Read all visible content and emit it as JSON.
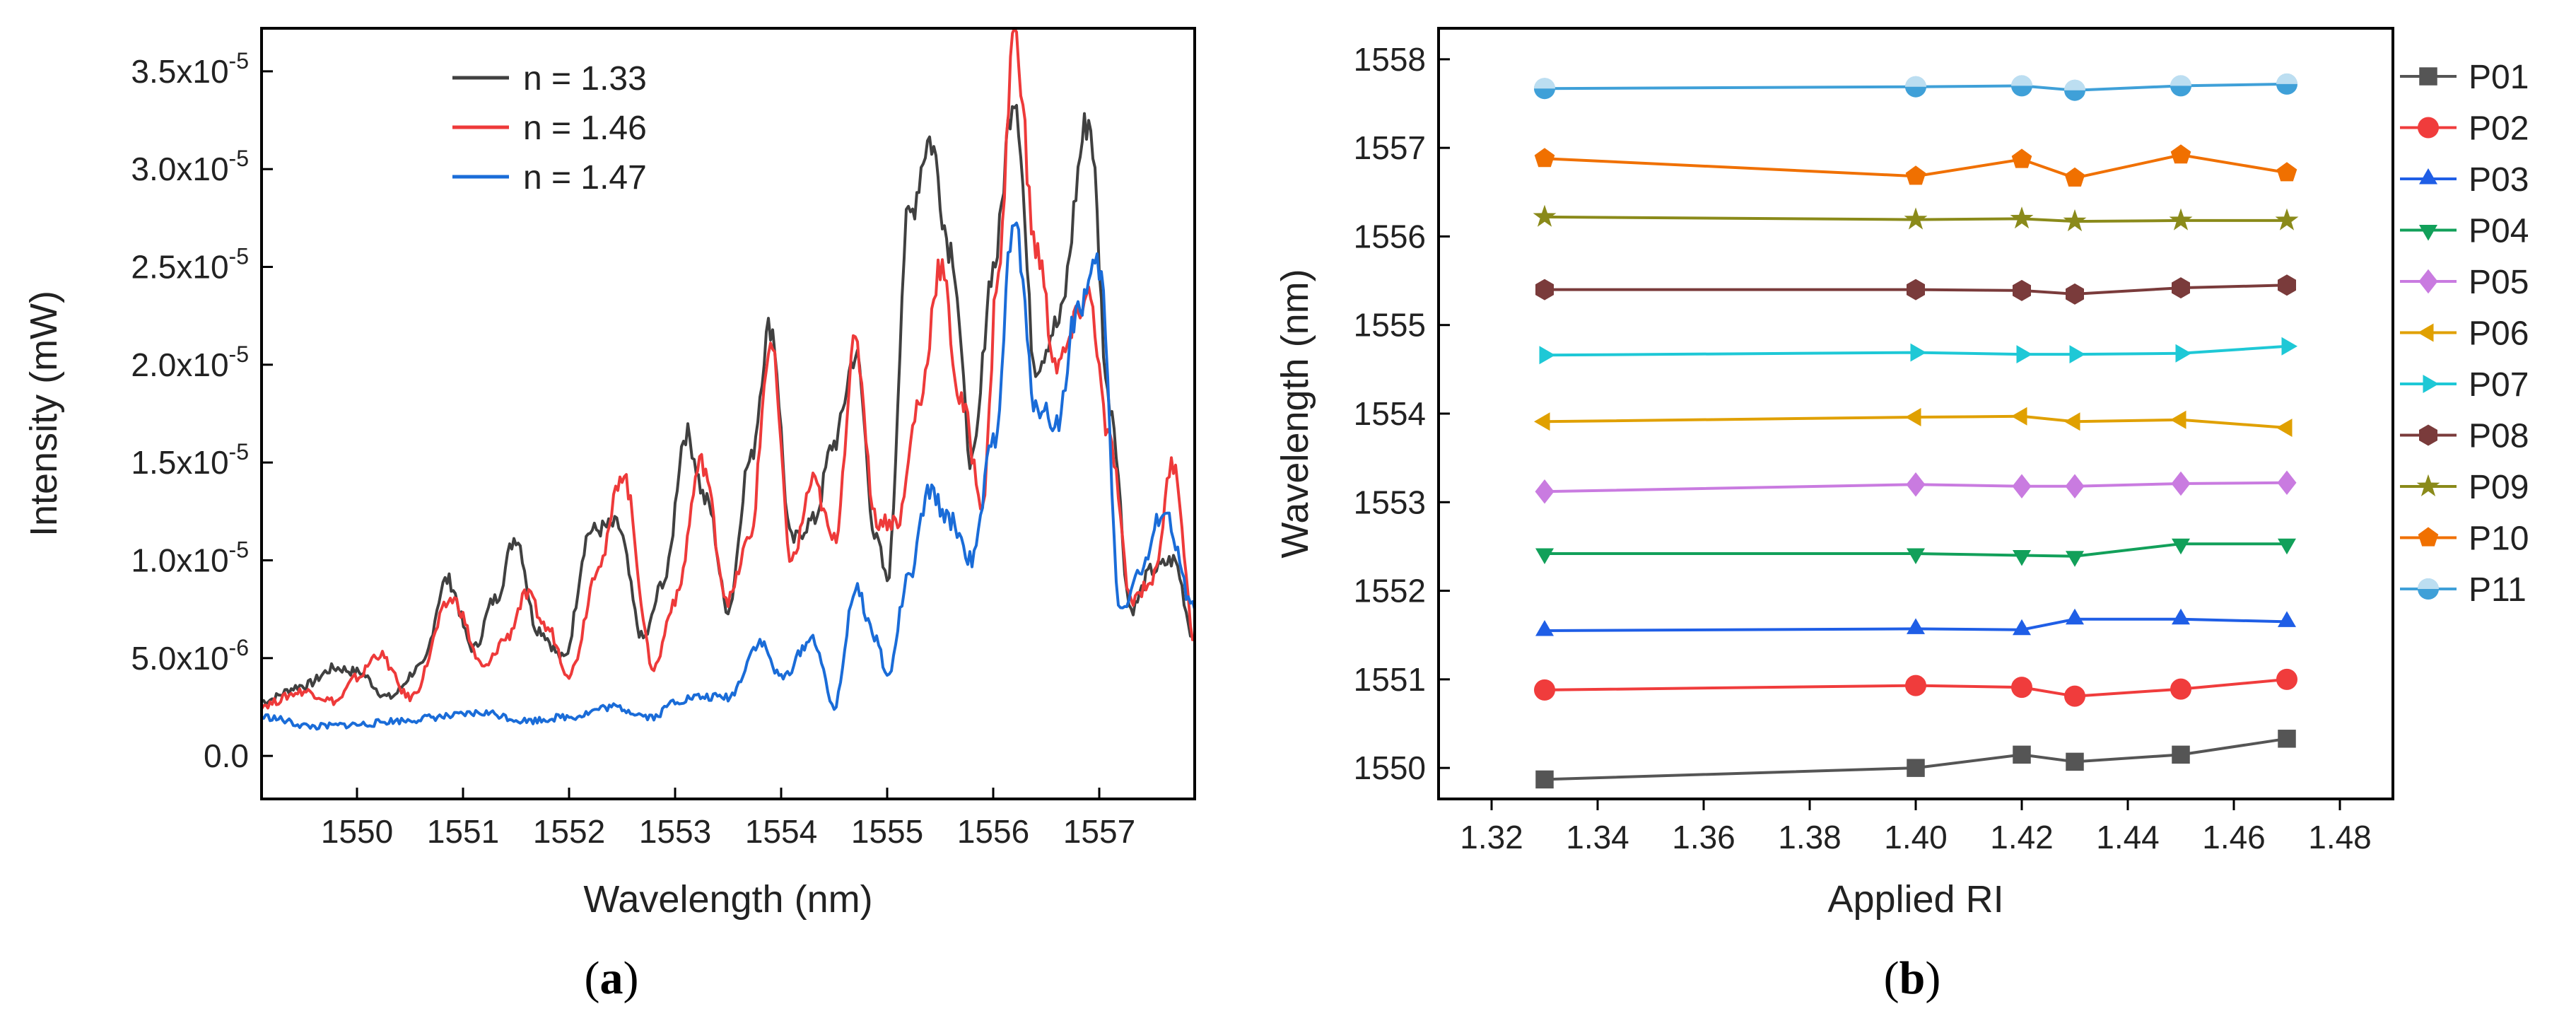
{
  "chart_data": [
    {
      "type": "line",
      "panel_label": "a",
      "xlabel": "Wavelength (nm)",
      "ylabel": "Intensity (mW)",
      "xlim": [
        1549.1,
        1557.9
      ],
      "ylim": [
        -2.2e-06,
        3.72e-05
      ],
      "xticks": [
        1550,
        1551,
        1552,
        1553,
        1554,
        1555,
        1556,
        1557
      ],
      "yticks": [
        {
          "value": 0,
          "mant": "0.0",
          "exp": ""
        },
        {
          "value": 5e-06,
          "mant": "5.0x10",
          "exp": "-6"
        },
        {
          "value": 1e-05,
          "mant": "1.0x10",
          "exp": "-5"
        },
        {
          "value": 1.5e-05,
          "mant": "1.5x10",
          "exp": "-5"
        },
        {
          "value": 2e-05,
          "mant": "2.0x10",
          "exp": "-5"
        },
        {
          "value": 2.5e-05,
          "mant": "2.5x10",
          "exp": "-5"
        },
        {
          "value": 3e-05,
          "mant": "3.0x10",
          "exp": "-5"
        },
        {
          "value": 3.5e-05,
          "mant": "3.5x10",
          "exp": "-5"
        }
      ],
      "legend_position": "top-left",
      "series": [
        {
          "name": "n = 1.33",
          "color": "#404040",
          "x": [
            1549.1,
            1549.5,
            1549.8,
            1550.0,
            1550.3,
            1550.6,
            1550.85,
            1551.1,
            1551.3,
            1551.5,
            1551.7,
            1551.95,
            1552.2,
            1552.45,
            1552.7,
            1552.9,
            1553.1,
            1553.3,
            1553.5,
            1553.7,
            1553.9,
            1554.1,
            1554.3,
            1554.5,
            1554.7,
            1554.9,
            1555.0,
            1555.2,
            1555.4,
            1555.6,
            1555.8,
            1556.0,
            1556.2,
            1556.4,
            1556.6,
            1556.9,
            1557.1,
            1557.3,
            1557.5,
            1557.7,
            1557.9
          ],
          "y": [
            2.8e-06,
            3.6e-06,
            4.5e-06,
            4.3e-06,
            3e-06,
            4.5e-06,
            9e-06,
            5.5e-06,
            8e-06,
            1.12e-05,
            6.5e-06,
            5e-06,
            1.15e-05,
            1.18e-05,
            6e-06,
            9e-06,
            1.65e-05,
            1.3e-05,
            7.5e-06,
            1.5e-05,
            2.2e-05,
            1.1e-05,
            1.2e-05,
            1.6e-05,
            2.05e-05,
            1.1e-05,
            9e-06,
            2.75e-05,
            3.15e-05,
            2.6e-05,
            1.5e-05,
            2.5e-05,
            3.4e-05,
            2e-05,
            2.2e-05,
            3.25e-05,
            1.8e-05,
            7.5e-06,
            9.5e-06,
            1e-05,
            6e-06
          ]
        },
        {
          "name": "n = 1.46",
          "color": "#ee3a3a",
          "x": [
            1549.1,
            1549.5,
            1549.8,
            1550.0,
            1550.2,
            1550.5,
            1550.9,
            1551.2,
            1551.4,
            1551.6,
            1551.8,
            1552.0,
            1552.3,
            1552.5,
            1552.8,
            1553.0,
            1553.25,
            1553.5,
            1553.7,
            1553.9,
            1554.1,
            1554.3,
            1554.5,
            1554.7,
            1554.9,
            1555.1,
            1555.3,
            1555.5,
            1555.7,
            1555.9,
            1556.05,
            1556.2,
            1556.4,
            1556.6,
            1556.9,
            1557.1,
            1557.3,
            1557.5,
            1557.7,
            1557.9
          ],
          "y": [
            2.6e-06,
            3.3e-06,
            2.8e-06,
            4e-06,
            5.2e-06,
            3e-06,
            8e-06,
            4.5e-06,
            6e-06,
            8.2e-06,
            6.5e-06,
            4.2e-06,
            1e-05,
            1.45e-05,
            4.5e-06,
            8e-06,
            1.5e-05,
            8e-06,
            1.1e-05,
            2.1e-05,
            1e-05,
            1.4e-05,
            1.1e-05,
            2.1e-05,
            1.2e-05,
            1.2e-05,
            1.8e-05,
            2.5e-05,
            1.8e-05,
            1.3e-05,
            2.5e-05,
            3.72e-05,
            2.6e-05,
            2e-05,
            2.35e-05,
            1.6e-05,
            8e-06,
            9e-06,
            1.5e-05,
            6e-06
          ]
        },
        {
          "name": "n = 1.47",
          "color": "#1a6cd8",
          "x": [
            1549.1,
            1549.6,
            1550.0,
            1550.4,
            1550.8,
            1551.2,
            1551.6,
            1552.0,
            1552.4,
            1552.8,
            1553.0,
            1553.2,
            1553.5,
            1553.8,
            1554.0,
            1554.3,
            1554.5,
            1554.7,
            1554.9,
            1555.0,
            1555.2,
            1555.4,
            1555.6,
            1555.8,
            1556.0,
            1556.2,
            1556.4,
            1556.6,
            1556.8,
            1557.0,
            1557.2,
            1557.4,
            1557.6,
            1557.9
          ],
          "y": [
            2e-06,
            1.5e-06,
            1.6e-06,
            1.8e-06,
            2e-06,
            2.2e-06,
            1.8e-06,
            2e-06,
            2.5e-06,
            2e-06,
            2.8e-06,
            3e-06,
            3e-06,
            5.8e-06,
            4e-06,
            6e-06,
            2.5e-06,
            8.5e-06,
            6e-06,
            4e-06,
            9e-06,
            1.35e-05,
            1.2e-05,
            1e-05,
            1.6e-05,
            2.72e-05,
            1.8e-05,
            1.7e-05,
            2.3e-05,
            2.5e-05,
            7.5e-06,
            9.5e-06,
            1.25e-05,
            7.5e-06
          ]
        }
      ]
    },
    {
      "type": "line",
      "panel_label": "b",
      "xlabel": "Applied RI",
      "ylabel": "Wavelength (nm)",
      "xlim": [
        1.31,
        1.49
      ],
      "ylim": [
        1549.65,
        1558.35
      ],
      "xticks": [
        "1.32",
        "1.34",
        "1.36",
        "1.38",
        "1.40",
        "1.42",
        "1.44",
        "1.46",
        "1.48"
      ],
      "yticks": [
        "1550",
        "1551",
        "1552",
        "1553",
        "1554",
        "1555",
        "1556",
        "1557",
        "1558"
      ],
      "legend_position": "right",
      "x": [
        1.33,
        1.4,
        1.42,
        1.43,
        1.45,
        1.47
      ],
      "series": [
        {
          "name": "P01",
          "color": "#555555",
          "marker": "square",
          "values": [
            1549.87,
            1550.0,
            1550.15,
            1550.07,
            1550.15,
            1550.33
          ]
        },
        {
          "name": "P02",
          "color": "#f03c3c",
          "marker": "circle",
          "values": [
            1550.88,
            1550.93,
            1550.91,
            1550.81,
            1550.89,
            1551.0
          ]
        },
        {
          "name": "P03",
          "color": "#1f5ee6",
          "marker": "triangle-up",
          "values": [
            1551.55,
            1551.57,
            1551.56,
            1551.68,
            1551.68,
            1551.65
          ]
        },
        {
          "name": "P04",
          "color": "#12a05a",
          "marker": "triangle-down",
          "values": [
            1552.42,
            1552.42,
            1552.4,
            1552.39,
            1552.53,
            1552.53
          ]
        },
        {
          "name": "P05",
          "color": "#c97be0",
          "marker": "diamond",
          "values": [
            1553.12,
            1553.2,
            1553.18,
            1553.18,
            1553.21,
            1553.22
          ]
        },
        {
          "name": "P06",
          "color": "#e0a000",
          "marker": "triangle-left",
          "values": [
            1553.91,
            1553.96,
            1553.97,
            1553.91,
            1553.93,
            1553.84
          ]
        },
        {
          "name": "P07",
          "color": "#1ec8d6",
          "marker": "triangle-right",
          "values": [
            1554.66,
            1554.69,
            1554.67,
            1554.67,
            1554.68,
            1554.76
          ]
        },
        {
          "name": "P08",
          "color": "#7a3b3b",
          "marker": "hexagon",
          "values": [
            1555.4,
            1555.4,
            1555.39,
            1555.35,
            1555.42,
            1555.45
          ]
        },
        {
          "name": "P09",
          "color": "#8a8a1a",
          "marker": "star",
          "values": [
            1556.22,
            1556.19,
            1556.2,
            1556.17,
            1556.18,
            1556.18
          ]
        },
        {
          "name": "P10",
          "color": "#f07000",
          "marker": "pentagon",
          "values": [
            1556.88,
            1556.68,
            1556.87,
            1556.66,
            1556.92,
            1556.72
          ]
        },
        {
          "name": "P11",
          "color": "#3fa0d8",
          "marker": "circle-half",
          "values": [
            1557.67,
            1557.69,
            1557.7,
            1557.65,
            1557.7,
            1557.72
          ]
        }
      ]
    }
  ]
}
